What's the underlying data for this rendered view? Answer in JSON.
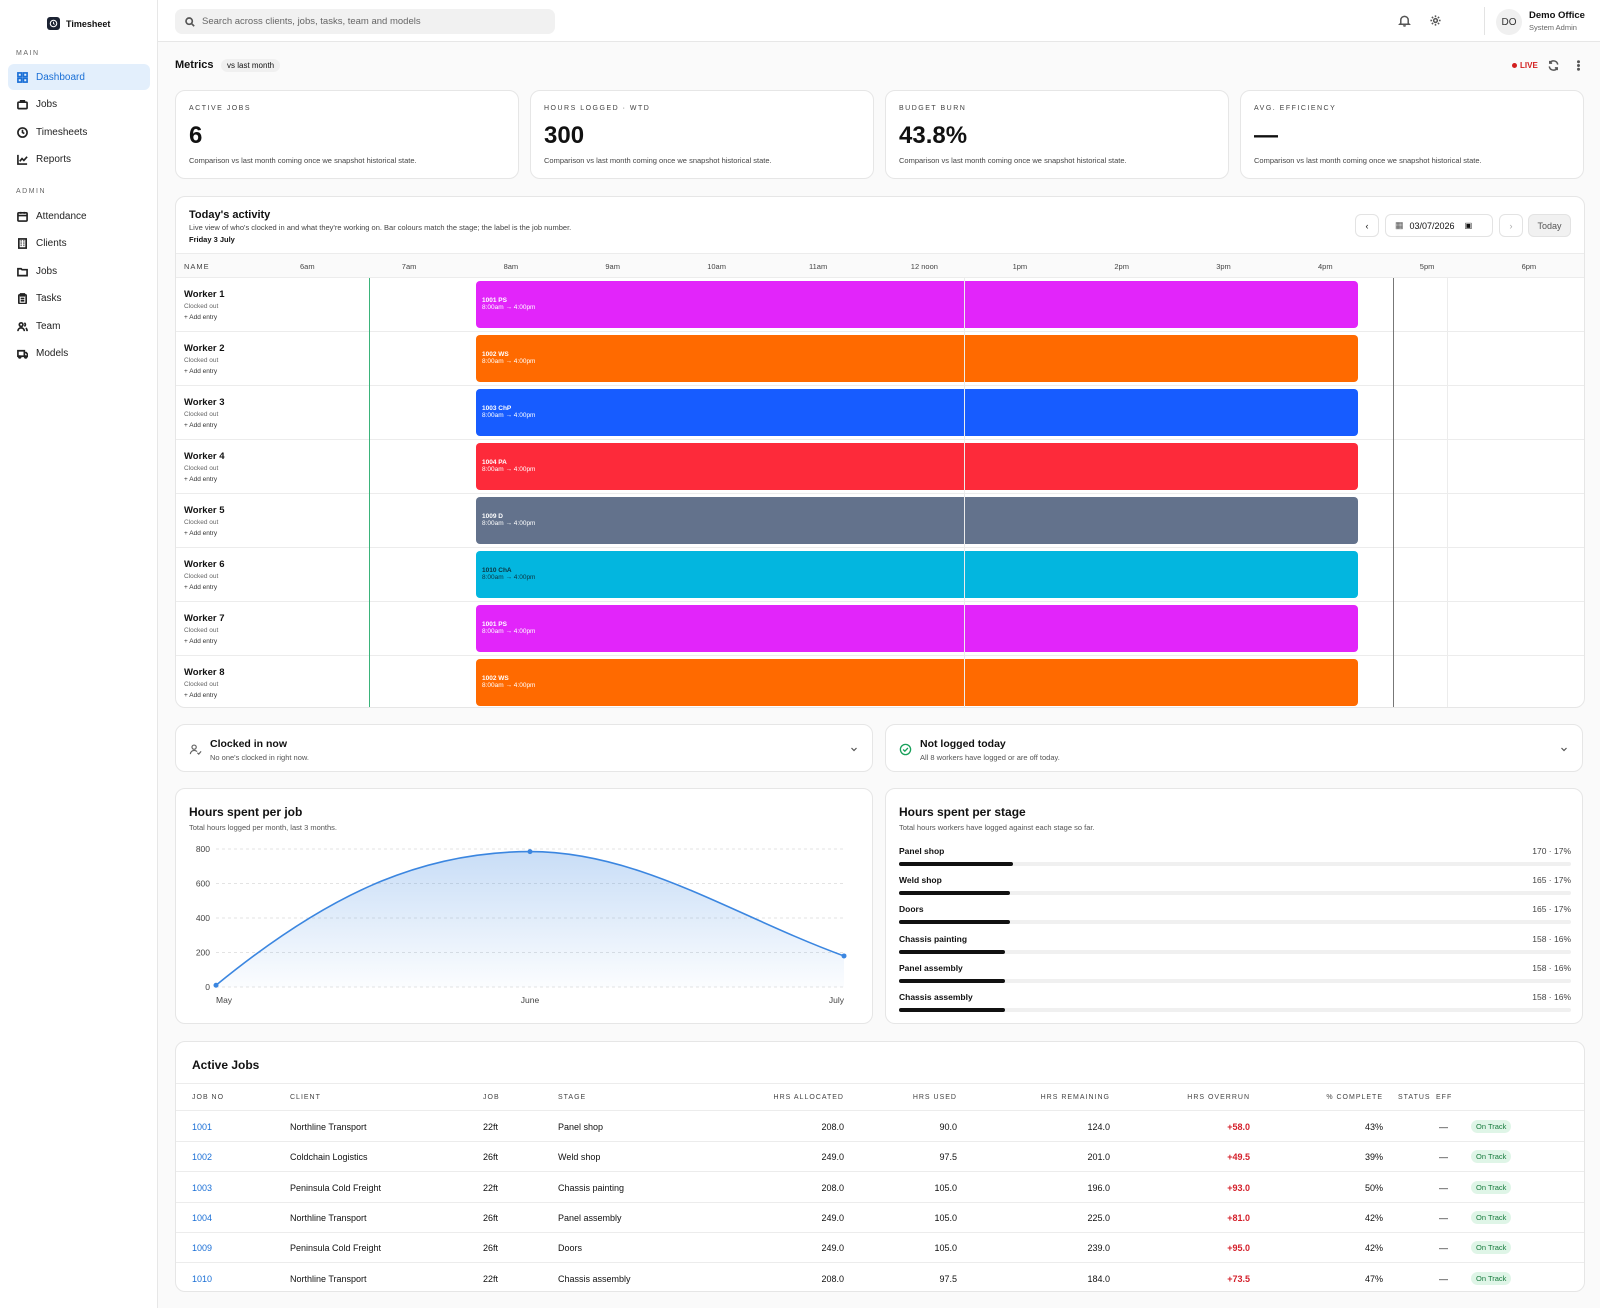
{
  "app": {
    "name": "Timesheet"
  },
  "sidebar": {
    "main_label": "MAIN",
    "admin_label": "ADMIN",
    "main_items": [
      {
        "label": "Dashboard",
        "icon": "dashboard-icon"
      },
      {
        "label": "Jobs",
        "icon": "briefcase-icon"
      },
      {
        "label": "Timesheets",
        "icon": "clock-icon"
      },
      {
        "label": "Reports",
        "icon": "chart-icon"
      }
    ],
    "admin_items": [
      {
        "label": "Attendance",
        "icon": "calendar-icon"
      },
      {
        "label": "Clients",
        "icon": "building-icon"
      },
      {
        "label": "Jobs",
        "icon": "folder-icon"
      },
      {
        "label": "Tasks",
        "icon": "clipboard-icon"
      },
      {
        "label": "Team",
        "icon": "users-icon"
      },
      {
        "label": "Models",
        "icon": "truck-icon"
      }
    ]
  },
  "topbar": {
    "search_placeholder": "Search across clients, jobs, tasks, team and models",
    "avatar": "DO",
    "user_name": "Demo Office",
    "user_role": "System Admin"
  },
  "metrics": {
    "title": "Metrics",
    "compare": "vs last month",
    "live": "LIVE",
    "cards": [
      {
        "label": "ACTIVE JOBS",
        "value": "6",
        "note": "Comparison vs last month coming once we snapshot historical state."
      },
      {
        "label": "HOURS LOGGED · WTD",
        "value": "300",
        "note": "Comparison vs last month coming once we snapshot historical state."
      },
      {
        "label": "BUDGET BURN",
        "value": "43.8%",
        "note": "Comparison vs last month coming once we snapshot historical state."
      },
      {
        "label": "AVG. EFFICIENCY",
        "value": "—",
        "note": "Comparison vs last month coming once we snapshot historical state."
      }
    ]
  },
  "activity": {
    "title": "Today's activity",
    "subtitle": "Live view of who's clocked in and what they're working on. Bar colours match the stage; the label is the job number.",
    "date_label": "Friday 3 July",
    "date_value": "03/07/2026",
    "today_btn": "Today",
    "name_header": "NAME",
    "hours": [
      "6am",
      "7am",
      "8am",
      "9am",
      "10am",
      "11am",
      "12 noon",
      "1pm",
      "2pm",
      "3pm",
      "4pm",
      "5pm",
      "6pm"
    ],
    "add_entry": "+ Add entry",
    "workers": [
      {
        "name": "Worker 1",
        "status": "Clocked out",
        "job": "1001 PS",
        "time": "8:00am → 4:00pm",
        "color": "#e225fa",
        "text": "#ffffff"
      },
      {
        "name": "Worker 2",
        "status": "Clocked out",
        "job": "1002 WS",
        "time": "8:00am → 4:00pm",
        "color": "#ff6a00",
        "text": "#ffffff"
      },
      {
        "name": "Worker 3",
        "status": "Clocked out",
        "job": "1003 ChP",
        "time": "8:00am → 4:00pm",
        "color": "#175cff",
        "text": "#ffffff"
      },
      {
        "name": "Worker 4",
        "status": "Clocked out",
        "job": "1004 PA",
        "time": "8:00am → 4:00pm",
        "color": "#fd2a3a",
        "text": "#ffffff"
      },
      {
        "name": "Worker 5",
        "status": "Clocked out",
        "job": "1009 D",
        "time": "8:00am → 4:00pm",
        "color": "#63728c",
        "text": "#ffffff"
      },
      {
        "name": "Worker 6",
        "status": "Clocked out",
        "job": "1010 ChA",
        "time": "8:00am → 4:00pm",
        "color": "#03b6df",
        "text": "#0d3440"
      },
      {
        "name": "Worker 7",
        "status": "Clocked out",
        "job": "1001 PS",
        "time": "8:00am → 4:00pm",
        "color": "#e225fa",
        "text": "#ffffff"
      },
      {
        "name": "Worker 8",
        "status": "Clocked out",
        "job": "1002 WS",
        "time": "8:00am → 4:00pm",
        "color": "#ff6a00",
        "text": "#ffffff"
      }
    ]
  },
  "clocked_in": {
    "title": "Clocked in now",
    "subtitle": "No one's clocked in right now."
  },
  "not_logged": {
    "title": "Not logged today",
    "subtitle": "All 8 workers have logged or are off today."
  },
  "hours_job": {
    "title": "Hours spent per job",
    "subtitle": "Total hours logged per month, last 3 months."
  },
  "chart_data": {
    "type": "area",
    "x": [
      "May",
      "June",
      "July"
    ],
    "values": [
      10,
      785,
      180
    ],
    "ylim": [
      0,
      800
    ],
    "yticks": [
      0,
      200,
      400,
      600,
      800
    ],
    "color": "#3b86e0"
  },
  "hours_stage": {
    "title": "Hours spent per stage",
    "subtitle": "Total hours workers have logged against each stage so far.",
    "stages": [
      {
        "name": "Panel shop",
        "value": "170 · 17%",
        "pct": 17
      },
      {
        "name": "Weld shop",
        "value": "165 · 17%",
        "pct": 16.5
      },
      {
        "name": "Doors",
        "value": "165 · 17%",
        "pct": 16.5
      },
      {
        "name": "Chassis painting",
        "value": "158 · 16%",
        "pct": 15.8
      },
      {
        "name": "Panel assembly",
        "value": "158 · 16%",
        "pct": 15.8
      },
      {
        "name": "Chassis assembly",
        "value": "158 · 16%",
        "pct": 15.8
      }
    ]
  },
  "active_jobs": {
    "title": "Active Jobs",
    "columns": [
      "JOB NO",
      "CLIENT",
      "JOB",
      "STAGE",
      "HRS ALLOCATED",
      "HRS USED",
      "HRS REMAINING",
      "HRS OVERRUN",
      "% COMPLETE",
      "EFF",
      "STATUS"
    ],
    "rows": [
      [
        "1001",
        "Northline Transport",
        "22ft",
        "Panel shop",
        "208.0",
        "90.0",
        "124.0",
        "+58.0",
        "43%",
        "—",
        "On Track"
      ],
      [
        "1002",
        "Coldchain Logistics",
        "26ft",
        "Weld shop",
        "249.0",
        "97.5",
        "201.0",
        "+49.5",
        "39%",
        "—",
        "On Track"
      ],
      [
        "1003",
        "Peninsula Cold Freight",
        "22ft",
        "Chassis painting",
        "208.0",
        "105.0",
        "196.0",
        "+93.0",
        "50%",
        "—",
        "On Track"
      ],
      [
        "1004",
        "Northline Transport",
        "26ft",
        "Panel assembly",
        "249.0",
        "105.0",
        "225.0",
        "+81.0",
        "42%",
        "—",
        "On Track"
      ],
      [
        "1009",
        "Peninsula Cold Freight",
        "26ft",
        "Doors",
        "249.0",
        "105.0",
        "239.0",
        "+95.0",
        "42%",
        "—",
        "On Track"
      ],
      [
        "1010",
        "Northline Transport",
        "22ft",
        "Chassis assembly",
        "208.0",
        "97.5",
        "184.0",
        "+73.5",
        "47%",
        "—",
        "On Track"
      ]
    ]
  }
}
